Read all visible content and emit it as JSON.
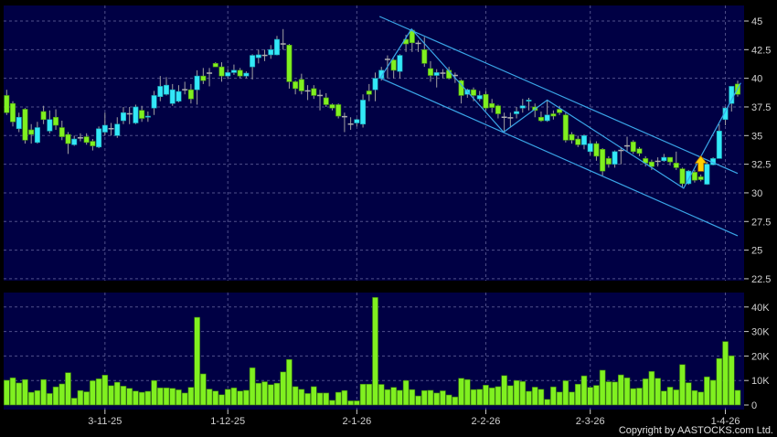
{
  "chart_data": [
    {
      "type": "candlestick",
      "panel": "price",
      "y_ticks": [
        "45",
        "42.5",
        "40",
        "37.5",
        "35",
        "32.5",
        "30",
        "27.5",
        "25",
        "22.5"
      ],
      "y_tick_values": [
        45,
        42.5,
        40,
        37.5,
        35,
        32.5,
        30,
        27.5,
        25,
        22.5
      ],
      "ylim": [
        22.5,
        45.8
      ],
      "grid": true,
      "colors": {
        "up": "#33e8f8",
        "down": "#80f020",
        "doji": "#b0b0b0",
        "wick": "#a0a0a0",
        "background": "#000044",
        "grid": "#50508a",
        "trendline": "#3aa6e8",
        "signal_arrow": "#ffd000"
      },
      "ohlc_note_fields": [
        "open",
        "high",
        "low",
        "close"
      ],
      "candles": [
        [
          38.5,
          39.0,
          36.8,
          37.0
        ],
        [
          37.8,
          38.0,
          35.8,
          36.2
        ],
        [
          35.6,
          37.0,
          35.3,
          36.6
        ],
        [
          37.3,
          37.4,
          34.3,
          34.6
        ],
        [
          35.5,
          36.0,
          34.3,
          35.1
        ],
        [
          34.4,
          36.2,
          34.3,
          35.7
        ],
        [
          37.1,
          37.6,
          36.0,
          36.4
        ],
        [
          35.4,
          37.2,
          35.2,
          36.4
        ],
        [
          36.6,
          37.3,
          35.5,
          35.9
        ],
        [
          35.7,
          36.3,
          34.6,
          34.9
        ],
        [
          35.1,
          35.3,
          33.4,
          34.3
        ],
        [
          34.2,
          35.0,
          34.1,
          34.7
        ],
        [
          34.8,
          35.2,
          34.5,
          34.8
        ],
        [
          34.9,
          35.2,
          34.2,
          34.4
        ],
        [
          34.5,
          34.7,
          33.7,
          34.1
        ],
        [
          34.0,
          35.8,
          33.9,
          35.6
        ],
        [
          35.3,
          37.0,
          35.0,
          35.9
        ],
        [
          35.6,
          36.1,
          35.0,
          35.6
        ],
        [
          35.0,
          36.6,
          34.8,
          36.0
        ],
        [
          36.3,
          37.5,
          36.0,
          37.0
        ],
        [
          36.9,
          37.5,
          36.0,
          36.9
        ],
        [
          36.1,
          37.7,
          36.0,
          37.5
        ],
        [
          37.2,
          37.6,
          36.2,
          36.5
        ],
        [
          36.6,
          37.1,
          36.2,
          36.7
        ],
        [
          37.4,
          38.9,
          36.8,
          38.5
        ],
        [
          38.4,
          40.2,
          38.0,
          39.3
        ],
        [
          38.6,
          40.1,
          38.5,
          39.4
        ],
        [
          37.8,
          39.5,
          37.6,
          39.0
        ],
        [
          38.0,
          39.4,
          37.9,
          38.85
        ],
        [
          39.0,
          39.7,
          38.6,
          39.0
        ],
        [
          39.0,
          39.5,
          37.8,
          38.2
        ],
        [
          39.0,
          40.7,
          37.7,
          40.2
        ],
        [
          40.2,
          40.9,
          39.5,
          39.8
        ],
        [
          40.45,
          40.9,
          39.3,
          40.45
        ],
        [
          41.3,
          41.4,
          41.0,
          41.0
        ],
        [
          41.0,
          41.4,
          39.7,
          40.2
        ],
        [
          40.2,
          40.8,
          40.0,
          40.5
        ],
        [
          40.5,
          41.2,
          40.3,
          40.7
        ],
        [
          40.7,
          40.9,
          40.0,
          40.2
        ],
        [
          40.2,
          40.6,
          40.0,
          40.45
        ],
        [
          41.0,
          42.1,
          39.9,
          42.0
        ],
        [
          41.8,
          42.5,
          41.3,
          42.05
        ],
        [
          42.0,
          42.5,
          41.5,
          42.0
        ],
        [
          42.05,
          42.9,
          41.7,
          42.5
        ],
        [
          42.05,
          43.7,
          42.0,
          43.4
        ],
        [
          43.0,
          44.3,
          42.5,
          43.0
        ],
        [
          42.9,
          43.0,
          39.1,
          39.7
        ],
        [
          39.7,
          39.8,
          38.6,
          39.1
        ],
        [
          39.9,
          40.4,
          38.6,
          38.9
        ],
        [
          38.9,
          39.4,
          38.1,
          38.9
        ],
        [
          39.1,
          39.4,
          38.2,
          38.5
        ],
        [
          38.5,
          39.0,
          37.2,
          38.5
        ],
        [
          38.3,
          38.7,
          37.5,
          37.7
        ],
        [
          37.7,
          37.8,
          37.2,
          37.4
        ],
        [
          37.7,
          37.8,
          36.5,
          36.7
        ],
        [
          36.65,
          37.0,
          35.3,
          36.65
        ],
        [
          36.0,
          36.6,
          35.5,
          36.0
        ],
        [
          36.1,
          36.5,
          35.8,
          36.4
        ],
        [
          36.0,
          38.6,
          35.7,
          38.1
        ],
        [
          38.9,
          39.5,
          38.0,
          38.6
        ],
        [
          39.0,
          40.5,
          38.0,
          40.0
        ],
        [
          40.0,
          41.0,
          39.8,
          40.7
        ],
        [
          41.65,
          42.0,
          40.0,
          41.65
        ],
        [
          41.6,
          41.7,
          40.0,
          40.7
        ],
        [
          40.6,
          42.1,
          40.0,
          42.0
        ],
        [
          43.4,
          43.8,
          42.3,
          43.0
        ],
        [
          44.2,
          44.3,
          42.3,
          43.1
        ],
        [
          43.05,
          43.3,
          42.3,
          43.05
        ],
        [
          42.5,
          43.6,
          41.0,
          41.3
        ],
        [
          40.85,
          41.5,
          39.7,
          40.25
        ],
        [
          40.25,
          40.8,
          39.2,
          40.5
        ],
        [
          40.45,
          40.8,
          40.0,
          40.45
        ],
        [
          40.7,
          41.0,
          39.9,
          40.0
        ],
        [
          40.25,
          40.5,
          39.6,
          40.25
        ],
        [
          39.8,
          39.9,
          37.8,
          38.5
        ],
        [
          38.6,
          39.1,
          38.3,
          39.0
        ],
        [
          39.0,
          39.2,
          38.0,
          38.5
        ],
        [
          38.2,
          38.9,
          38.0,
          38.5
        ],
        [
          38.6,
          38.9,
          37.2,
          37.4
        ],
        [
          37.8,
          38.2,
          37.0,
          37.45
        ],
        [
          37.6,
          37.7,
          36.5,
          36.9
        ],
        [
          36.6,
          37.0,
          35.3,
          36.6
        ],
        [
          36.55,
          37.0,
          35.7,
          36.55
        ],
        [
          36.9,
          37.5,
          36.5,
          37.1
        ],
        [
          37.4,
          38.2,
          37.0,
          37.6
        ],
        [
          38.0,
          38.3,
          37.2,
          38.1
        ],
        [
          37.5,
          37.8,
          36.6,
          37.2
        ],
        [
          36.6,
          37.1,
          36.2,
          36.3
        ],
        [
          36.3,
          38.1,
          36.2,
          36.8
        ],
        [
          36.9,
          37.2,
          36.4,
          36.7
        ],
        [
          37.3,
          37.6,
          36.8,
          37.0
        ],
        [
          36.8,
          37.0,
          34.4,
          34.6
        ],
        [
          35.1,
          35.3,
          34.3,
          34.6
        ],
        [
          34.7,
          35.0,
          34.0,
          34.2
        ],
        [
          34.2,
          35.1,
          33.8,
          35.0
        ],
        [
          33.6,
          34.6,
          33.3,
          34.3
        ],
        [
          34.3,
          34.5,
          32.8,
          33.2
        ],
        [
          33.8,
          33.9,
          31.5,
          31.9
        ],
        [
          33.0,
          33.2,
          32.2,
          32.5
        ],
        [
          32.5,
          33.7,
          32.2,
          33.6
        ],
        [
          33.7,
          34.0,
          32.5,
          33.7
        ],
        [
          34.1,
          34.9,
          33.6,
          34.1
        ],
        [
          34.45,
          34.6,
          33.4,
          33.6
        ],
        [
          33.85,
          34.0,
          33.2,
          33.45
        ],
        [
          33.0,
          33.2,
          32.3,
          32.6
        ],
        [
          32.7,
          32.9,
          32.0,
          32.3
        ],
        [
          32.75,
          33.1,
          32.3,
          32.75
        ],
        [
          32.8,
          33.4,
          32.7,
          33.1
        ],
        [
          33.1,
          33.1,
          32.4,
          32.7
        ],
        [
          32.6,
          33.6,
          32.0,
          32.2
        ],
        [
          32.1,
          32.2,
          30.5,
          30.8
        ],
        [
          30.8,
          32.0,
          30.7,
          31.9
        ],
        [
          31.8,
          32.0,
          30.9,
          31.1
        ],
        [
          31.4,
          31.6,
          31.0,
          31.15
        ],
        [
          30.75,
          32.7,
          30.7,
          32.5
        ],
        [
          32.45,
          33.1,
          32.4,
          33.0
        ],
        [
          33.0,
          36.0,
          33.0,
          35.4
        ],
        [
          36.4,
          37.5,
          35.9,
          37.4
        ],
        [
          37.8,
          39.3,
          37.1,
          39.3
        ],
        [
          39.5,
          39.8,
          38.4,
          38.6
        ]
      ],
      "trendlines": [
        {
          "kind": "channel-upper",
          "points": [
            [
              60.7,
              45.4
            ],
            [
              119,
              31.7
            ]
          ]
        },
        {
          "kind": "channel-lower",
          "points": [
            [
              60.7,
              40.05
            ],
            [
              119,
              26.25
            ]
          ]
        },
        {
          "kind": "zigzag",
          "points": [
            [
              60.8,
              40.0
            ],
            [
              65.9,
              44.3
            ],
            [
              80.9,
              35.3
            ],
            [
              88,
              38.1
            ],
            [
              110.2,
              30.4
            ],
            [
              119.5,
              39.6
            ]
          ]
        }
      ],
      "signal": {
        "type": "buy-arrow",
        "bar": 113,
        "price": 32.2
      }
    },
    {
      "type": "bar",
      "panel": "volume",
      "y_ticks": [
        "40K",
        "30K",
        "20K",
        "10K",
        "0"
      ],
      "y_tick_values": [
        40,
        30,
        20,
        10,
        0
      ],
      "ylim": [
        0,
        45
      ],
      "unit": "K",
      "grid": true,
      "bar_color": "#80f020",
      "values": [
        10.1,
        11.1,
        9.0,
        10.4,
        5.2,
        5.9,
        10.4,
        4.7,
        7.4,
        8.6,
        13.2,
        2.8,
        5.9,
        5.4,
        9.9,
        10.7,
        12.2,
        7.9,
        9.3,
        7.7,
        6.8,
        5.7,
        5.2,
        5.6,
        10.0,
        7.0,
        7.0,
        6.8,
        6.2,
        4.9,
        7.2,
        35.8,
        12.7,
        6.5,
        5.7,
        4.2,
        6.4,
        7.0,
        5.7,
        6.0,
        15.2,
        8.9,
        9.5,
        8.3,
        8.9,
        13.5,
        18.6,
        7.5,
        6.4,
        4.7,
        7.5,
        4.9,
        4.9,
        1.9,
        5.2,
        5.9,
        1.7,
        1.7,
        8.5,
        8.5,
        43.9,
        8.4,
        6.3,
        7.2,
        6.0,
        10.0,
        6.3,
        3.7,
        5.9,
        6.0,
        4.9,
        5.8,
        4.1,
        3.3,
        10.9,
        10.4,
        6.3,
        6.4,
        8.1,
        7.0,
        7.5,
        12.0,
        7.9,
        10.0,
        9.6,
        5.6,
        7.3,
        6.4,
        2.3,
        7.4,
        5.3,
        9.9,
        5.3,
        8.5,
        11.9,
        7.2,
        8.0,
        14.2,
        9.5,
        9.4,
        12.3,
        11.1,
        6.7,
        6.9,
        10.7,
        13.7,
        10.9,
        5.7,
        7.3,
        6.2,
        16.5,
        9.1,
        5.9,
        5.3,
        11.5,
        10.1,
        19.0,
        25.9,
        20.1,
        6.0
      ]
    }
  ],
  "x_axis": {
    "labels": [
      "3-11-25",
      "1-12-25",
      "2-1-26",
      "2-2-26",
      "2-3-26",
      "1-4-26"
    ],
    "label_bars": [
      16,
      36,
      57,
      78,
      95,
      117
    ]
  },
  "footer": {
    "copyright": "Copyright by AASTOCKS.com Ltd."
  }
}
